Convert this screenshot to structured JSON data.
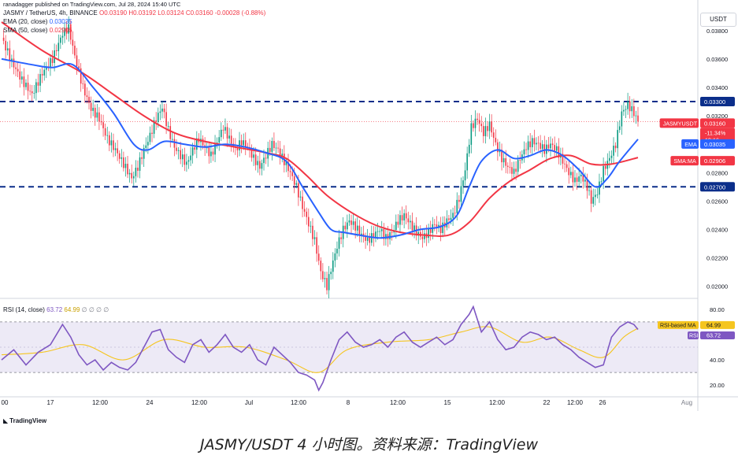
{
  "publisher": "ranadagger published on TradingView.com, Jul 28, 2024 15:40 UTC",
  "legend": {
    "symbol": "JASMY / TetherUS, 4h, BINANCE",
    "ohlc": "O0.03190  H0.03192  L0.03124  C0.03160  -0.00028 (-0.88%)",
    "ema_label": "EMA (20, close)",
    "ema_value": "0.03035",
    "sma_label": "SMA (50, close)",
    "sma_value": "0.02906",
    "rsi_label": "RSI (14, close)",
    "rsi_value": "63.72",
    "rsi_ma_value": "64.99",
    "rsi_extra": "∅ ∅ ∅ ∅"
  },
  "currency": "USDT",
  "caption": "JASMY/USDT 4 小时图。资料来源：TradingView",
  "brand": "TradingView",
  "colors": {
    "up": "#089981",
    "down": "#f23645",
    "ema": "#2962ff",
    "sma": "#f23645",
    "rsi": "#7e57c2",
    "rsi_ma": "#f5c51f",
    "band": "#e1dcf0",
    "dash": "#0b2e8a"
  },
  "chart_data": [
    {
      "type": "candlestick",
      "title": "JASMY / TetherUS, 4h, BINANCE",
      "y_ticks": [
        0.02,
        0.022,
        0.024,
        0.026,
        0.028,
        0.03,
        0.032,
        0.034,
        0.036,
        0.038
      ],
      "y_tick_labels": [
        "0.02000",
        "0.02200",
        "0.02400",
        "0.02600",
        "0.02800",
        "0.03000",
        "0.03200",
        "0.03400",
        "0.03600",
        "0.03800"
      ],
      "ylim": [
        0.0192,
        0.0396
      ],
      "x_tick_labels": [
        "00",
        "17",
        "12:00",
        "24",
        "12:00",
        "Jul",
        "12:00",
        "8",
        "12:00",
        "15",
        "12:00",
        "22",
        "12:00",
        "26",
        "Aug"
      ],
      "horizontal_levels": [
        0.033,
        0.027
      ],
      "horizontal_level_labels": [
        "0.03300",
        "0.02700"
      ],
      "price_tags": [
        {
          "name": "JASMYUSDT",
          "value": "0.03160",
          "sub": [
            "-11.34%",
            "19:16"
          ],
          "y": 0.0316
        },
        {
          "name": "EMA",
          "value": "0.03035",
          "y": 0.03035
        },
        {
          "name": "SMA:MA",
          "value": "0.02906",
          "y": 0.02906
        }
      ],
      "close_path": [
        [
          0,
          0.0375
        ],
        [
          5,
          0.0358
        ],
        [
          10,
          0.0345
        ],
        [
          15,
          0.0335
        ],
        [
          20,
          0.035
        ],
        [
          25,
          0.036
        ],
        [
          30,
          0.0378
        ],
        [
          33,
          0.0382
        ],
        [
          36,
          0.0362
        ],
        [
          40,
          0.034
        ],
        [
          44,
          0.0325
        ],
        [
          48,
          0.0318
        ],
        [
          52,
          0.0304
        ],
        [
          56,
          0.0296
        ],
        [
          60,
          0.0286
        ],
        [
          64,
          0.0276
        ],
        [
          67,
          0.0284
        ],
        [
          70,
          0.0296
        ],
        [
          73,
          0.0306
        ],
        [
          76,
          0.0318
        ],
        [
          79,
          0.0326
        ],
        [
          82,
          0.031
        ],
        [
          85,
          0.0298
        ],
        [
          88,
          0.0292
        ],
        [
          91,
          0.0286
        ],
        [
          94,
          0.0296
        ],
        [
          97,
          0.0304
        ],
        [
          100,
          0.0298
        ],
        [
          103,
          0.0292
        ],
        [
          106,
          0.0302
        ],
        [
          109,
          0.0312
        ],
        [
          112,
          0.0304
        ],
        [
          115,
          0.0296
        ],
        [
          118,
          0.0302
        ],
        [
          121,
          0.0298
        ],
        [
          124,
          0.029
        ],
        [
          127,
          0.0284
        ],
        [
          130,
          0.0292
        ],
        [
          133,
          0.03
        ],
        [
          136,
          0.0296
        ],
        [
          139,
          0.0288
        ],
        [
          142,
          0.028
        ],
        [
          145,
          0.027
        ],
        [
          148,
          0.0256
        ],
        [
          151,
          0.0244
        ],
        [
          154,
          0.0232
        ],
        [
          157,
          0.021
        ],
        [
          160,
          0.02
        ],
        [
          162,
          0.0212
        ],
        [
          165,
          0.0228
        ],
        [
          168,
          0.024
        ],
        [
          171,
          0.0246
        ],
        [
          174,
          0.0242
        ],
        [
          177,
          0.0236
        ],
        [
          180,
          0.0232
        ],
        [
          183,
          0.0236
        ],
        [
          186,
          0.024
        ],
        [
          189,
          0.0234
        ],
        [
          192,
          0.0238
        ],
        [
          195,
          0.0246
        ],
        [
          198,
          0.025
        ],
        [
          201,
          0.0244
        ],
        [
          204,
          0.0238
        ],
        [
          207,
          0.0234
        ],
        [
          210,
          0.0238
        ],
        [
          213,
          0.0244
        ],
        [
          216,
          0.024
        ],
        [
          219,
          0.0246
        ],
        [
          222,
          0.025
        ],
        [
          225,
          0.0262
        ],
        [
          228,
          0.0282
        ],
        [
          231,
          0.0312
        ],
        [
          234,
          0.0318
        ],
        [
          237,
          0.0308
        ],
        [
          240,
          0.0314
        ],
        [
          243,
          0.03
        ],
        [
          246,
          0.029
        ],
        [
          249,
          0.0284
        ],
        [
          252,
          0.028
        ],
        [
          255,
          0.029
        ],
        [
          258,
          0.0298
        ],
        [
          261,
          0.0302
        ],
        [
          264,
          0.03
        ],
        [
          267,
          0.0296
        ],
        [
          270,
          0.03
        ],
        [
          273,
          0.0296
        ],
        [
          276,
          0.0288
        ],
        [
          279,
          0.028
        ],
        [
          282,
          0.0274
        ],
        [
          285,
          0.0278
        ],
        [
          288,
          0.027
        ],
        [
          290,
          0.026
        ],
        [
          293,
          0.0266
        ],
        [
          296,
          0.0282
        ],
        [
          299,
          0.029
        ],
        [
          302,
          0.03
        ],
        [
          305,
          0.0322
        ],
        [
          308,
          0.0328
        ],
        [
          311,
          0.0322
        ],
        [
          313,
          0.0316
        ]
      ],
      "series": [
        {
          "name": "EMA",
          "values": [
            [
              0,
              0.036
            ],
            [
              15,
              0.0356
            ],
            [
              25,
              0.0354
            ],
            [
              35,
              0.0356
            ],
            [
              45,
              0.034
            ],
            [
              55,
              0.0322
            ],
            [
              65,
              0.03
            ],
            [
              72,
              0.0296
            ],
            [
              80,
              0.0302
            ],
            [
              90,
              0.03
            ],
            [
              100,
              0.0298
            ],
            [
              110,
              0.03
            ],
            [
              120,
              0.0298
            ],
            [
              130,
              0.0294
            ],
            [
              140,
              0.0288
            ],
            [
              148,
              0.027
            ],
            [
              156,
              0.0252
            ],
            [
              162,
              0.024
            ],
            [
              168,
              0.0238
            ],
            [
              176,
              0.0236
            ],
            [
              186,
              0.0234
            ],
            [
              196,
              0.0236
            ],
            [
              206,
              0.024
            ],
            [
              216,
              0.0242
            ],
            [
              224,
              0.025
            ],
            [
              230,
              0.027
            ],
            [
              236,
              0.0288
            ],
            [
              244,
              0.0296
            ],
            [
              252,
              0.029
            ],
            [
              260,
              0.0292
            ],
            [
              268,
              0.0296
            ],
            [
              276,
              0.0292
            ],
            [
              284,
              0.0282
            ],
            [
              292,
              0.027
            ],
            [
              298,
              0.0276
            ],
            [
              304,
              0.0288
            ],
            [
              313,
              0.03035
            ]
          ]
        },
        {
          "name": "SMA:MA",
          "values": [
            [
              0,
              0.0386
            ],
            [
              20,
              0.0366
            ],
            [
              40,
              0.035
            ],
            [
              55,
              0.0335
            ],
            [
              70,
              0.032
            ],
            [
              85,
              0.0308
            ],
            [
              100,
              0.0302
            ],
            [
              115,
              0.0298
            ],
            [
              130,
              0.0294
            ],
            [
              140,
              0.029
            ],
            [
              150,
              0.0278
            ],
            [
              160,
              0.0264
            ],
            [
              172,
              0.0252
            ],
            [
              184,
              0.0243
            ],
            [
              196,
              0.0238
            ],
            [
              208,
              0.0236
            ],
            [
              220,
              0.0236
            ],
            [
              230,
              0.0245
            ],
            [
              240,
              0.0262
            ],
            [
              250,
              0.0274
            ],
            [
              260,
              0.0282
            ],
            [
              270,
              0.029
            ],
            [
              280,
              0.0292
            ],
            [
              290,
              0.0286
            ],
            [
              300,
              0.0286
            ],
            [
              313,
              0.02906
            ]
          ]
        }
      ]
    },
    {
      "type": "line",
      "title": "RSI (14, close)",
      "ylim": [
        12,
        88
      ],
      "y_ticks": [
        20,
        40,
        60,
        80
      ],
      "y_tick_labels": [
        "20.00",
        "40.00",
        "60.00",
        "80.00"
      ],
      "band": [
        30,
        70
      ],
      "value_tags": [
        {
          "name": "RSI-based MA",
          "value": "64.99",
          "y": 64.99
        },
        {
          "name": "RSI",
          "value": "63.72",
          "y": 63.72
        }
      ],
      "series": [
        {
          "name": "RSI",
          "values": [
            [
              0,
              40
            ],
            [
              6,
              48
            ],
            [
              12,
              36
            ],
            [
              18,
              46
            ],
            [
              24,
              52
            ],
            [
              30,
              68
            ],
            [
              34,
              58
            ],
            [
              38,
              44
            ],
            [
              42,
              36
            ],
            [
              46,
              40
            ],
            [
              50,
              32
            ],
            [
              54,
              38
            ],
            [
              58,
              34
            ],
            [
              62,
              32
            ],
            [
              66,
              38
            ],
            [
              70,
              50
            ],
            [
              74,
              62
            ],
            [
              78,
              64
            ],
            [
              82,
              48
            ],
            [
              86,
              42
            ],
            [
              90,
              38
            ],
            [
              94,
              52
            ],
            [
              98,
              56
            ],
            [
              102,
              46
            ],
            [
              106,
              52
            ],
            [
              110,
              60
            ],
            [
              114,
              50
            ],
            [
              118,
              46
            ],
            [
              122,
              52
            ],
            [
              126,
              40
            ],
            [
              130,
              36
            ],
            [
              134,
              50
            ],
            [
              138,
              44
            ],
            [
              142,
              38
            ],
            [
              146,
              30
            ],
            [
              150,
              28
            ],
            [
              154,
              24
            ],
            [
              156,
              16
            ],
            [
              158,
              22
            ],
            [
              162,
              40
            ],
            [
              166,
              56
            ],
            [
              170,
              62
            ],
            [
              174,
              54
            ],
            [
              178,
              50
            ],
            [
              182,
              52
            ],
            [
              186,
              56
            ],
            [
              190,
              50
            ],
            [
              194,
              58
            ],
            [
              198,
              62
            ],
            [
              202,
              54
            ],
            [
              206,
              50
            ],
            [
              210,
              54
            ],
            [
              214,
              58
            ],
            [
              218,
              52
            ],
            [
              222,
              56
            ],
            [
              226,
              68
            ],
            [
              230,
              76
            ],
            [
              232,
              82
            ],
            [
              236,
              62
            ],
            [
              240,
              70
            ],
            [
              244,
              56
            ],
            [
              248,
              48
            ],
            [
              252,
              50
            ],
            [
              256,
              58
            ],
            [
              260,
              62
            ],
            [
              264,
              60
            ],
            [
              268,
              56
            ],
            [
              272,
              58
            ],
            [
              276,
              52
            ],
            [
              280,
              48
            ],
            [
              284,
              42
            ],
            [
              288,
              38
            ],
            [
              292,
              34
            ],
            [
              296,
              36
            ],
            [
              300,
              58
            ],
            [
              304,
              66
            ],
            [
              308,
              70
            ],
            [
              311,
              68
            ],
            [
              313,
              64
            ]
          ]
        },
        {
          "name": "RSI-based MA",
          "values": [
            [
              0,
              44
            ],
            [
              20,
              46
            ],
            [
              40,
              52
            ],
            [
              60,
              40
            ],
            [
              80,
              56
            ],
            [
              100,
              50
            ],
            [
              120,
              50
            ],
            [
              140,
              40
            ],
            [
              156,
              30
            ],
            [
              170,
              48
            ],
            [
              190,
              54
            ],
            [
              210,
              56
            ],
            [
              226,
              62
            ],
            [
              240,
              66
            ],
            [
              256,
              54
            ],
            [
              270,
              58
            ],
            [
              284,
              48
            ],
            [
              296,
              42
            ],
            [
              306,
              58
            ],
            [
              313,
              65
            ]
          ]
        }
      ]
    }
  ]
}
